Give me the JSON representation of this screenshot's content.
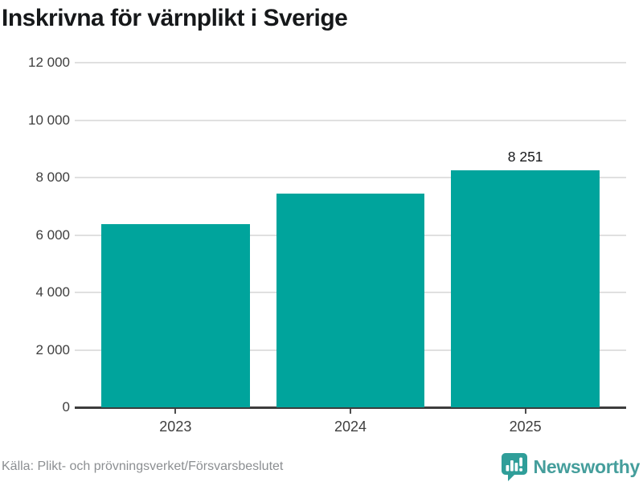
{
  "title": "Inskrivna för värnplikt i Sverige",
  "chart_data": {
    "type": "bar",
    "title": "Inskrivna för värnplikt i Sverige",
    "categories": [
      "2023",
      "2024",
      "2025"
    ],
    "values": [
      6380,
      7440,
      8251
    ],
    "bar_labels": [
      "",
      "",
      "8 251"
    ],
    "xlabel": "",
    "ylabel": "",
    "ylim": [
      0,
      12000
    ],
    "ytick_step": 2000,
    "ytick_labels": [
      "0",
      "2 000",
      "4 000",
      "6 000",
      "8 000",
      "10 000",
      "12 000"
    ],
    "grid": true,
    "legend": "none",
    "bar_color": "#00A49C"
  },
  "footer": {
    "source": "Källa: Plikt- och prövningsverket/Försvarsbeslutet",
    "brand_name": "Newsworthy"
  },
  "colors": {
    "bar": "#00A49C",
    "title_text": "#16181A",
    "axis_text": "#3F3F3F",
    "gridline": "#E0E0E0",
    "axis_line": "#3D3D3D",
    "source_text": "#8C8F92",
    "brand_text": "#459E9C",
    "brand_icon": "#2F9E99"
  }
}
